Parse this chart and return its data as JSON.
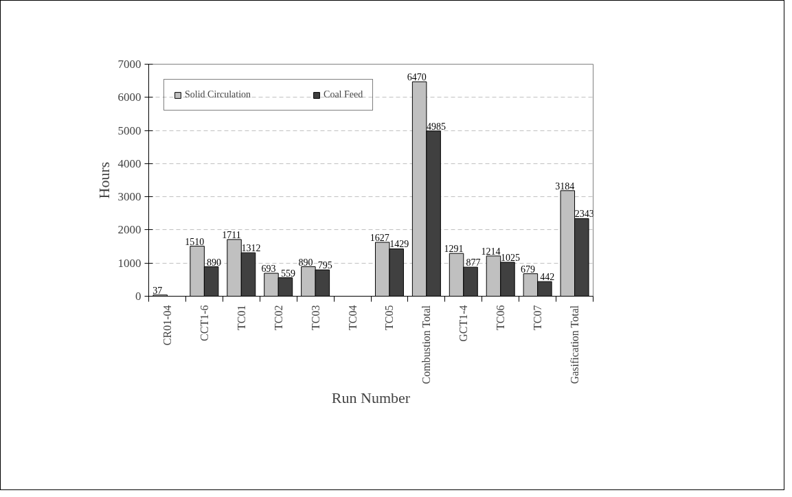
{
  "chart_data": {
    "type": "bar",
    "xlabel": "Run Number",
    "ylabel": "Hours",
    "categories": [
      "CR01-04",
      "CCT1-6",
      "TC01",
      "TC02",
      "TC03",
      "TC04",
      "TC05",
      "Combustion Total",
      "GCT1-4",
      "TC06",
      "TC07",
      "Gasification Total"
    ],
    "series": [
      {
        "name": "Solid Circulation",
        "color": "#c0c0c0",
        "values": [
          37,
          1510,
          1711,
          693,
          890,
          null,
          1627,
          6470,
          1291,
          1214,
          679,
          3184
        ]
      },
      {
        "name": "Coal Feed",
        "color": "#404040",
        "values": [
          null,
          890,
          1312,
          559,
          795,
          null,
          1429,
          4985,
          877,
          1025,
          442,
          2343
        ]
      }
    ],
    "ylim": [
      0,
      7000
    ],
    "yticks": [
      0,
      1000,
      2000,
      3000,
      4000,
      5000,
      6000,
      7000
    ],
    "grid": "y",
    "legend": "top left",
    "data_labels": true
  }
}
